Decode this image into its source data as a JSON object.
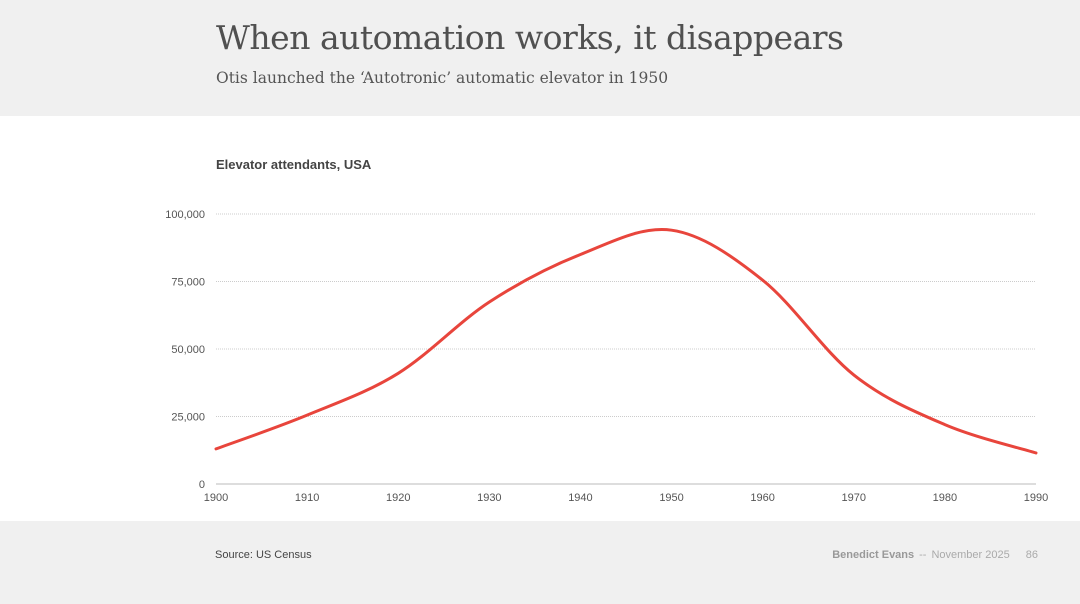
{
  "header": {
    "title": "When automation works, it disappears",
    "subtitle": "Otis launched the ‘Autotronic’ automatic elevator in 1950"
  },
  "chart_data": {
    "type": "line",
    "title": "Elevator attendants, USA",
    "xlabel": "",
    "ylabel": "",
    "x": [
      1900,
      1910,
      1920,
      1930,
      1940,
      1950,
      1960,
      1970,
      1980,
      1990
    ],
    "series": [
      {
        "values": [
          13000,
          25500,
          41000,
          67400,
          85000,
          94000,
          75500,
          40400,
          22000,
          11500
        ]
      }
    ],
    "xlim": [
      1900,
      1990
    ],
    "ylim": [
      0,
      100000
    ],
    "x_ticks": [
      "1900",
      "1910",
      "1920",
      "1930",
      "1940",
      "1950",
      "1960",
      "1970",
      "1980",
      "1990"
    ],
    "y_ticks": [
      "0",
      "25,000",
      "50,000",
      "75,000",
      "100,000"
    ],
    "y_tick_values": [
      0,
      25000,
      50000,
      75000,
      100000
    ],
    "grid": "horizontal dotted",
    "line_color": "#e8453c"
  },
  "footer": {
    "source": "Source: US Census",
    "author": "Benedict Evans",
    "separator": "--",
    "date": "November 2025",
    "page": "86"
  }
}
